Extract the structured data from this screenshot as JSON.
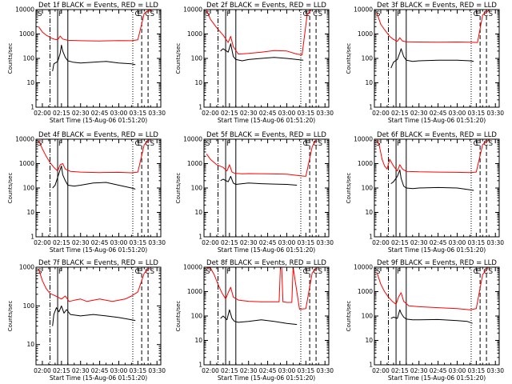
{
  "figure": {
    "colors": {
      "events": "#000000",
      "lld": "#ff0000",
      "axes": "#000000",
      "background": "#ffffff"
    }
  },
  "chart_data": [
    {
      "type": "line",
      "title": "Det 1f BLACK = Events, RED = LLD",
      "xlabel": "Start Time (15-Aug-06 01:51:20)",
      "ylabel": "Counts/sec",
      "x_ticks": [
        "02:00",
        "02:15",
        "02:30",
        "02:45",
        "03:00",
        "03:15",
        "03:30"
      ],
      "y_ticks": [
        "1",
        "10",
        "100",
        "1000",
        "10000"
      ],
      "yscale": "log",
      "ylim": [
        1,
        10000
      ],
      "markers": [
        "S",
        "F",
        "C",
        "E",
        "C",
        "S"
      ],
      "series": [
        {
          "color": "#ff0000",
          "x": [
            "01:57",
            "02:00",
            "02:03",
            "02:07",
            "02:10",
            "02:12",
            "02:14",
            "02:16",
            "02:20",
            "02:30",
            "02:45",
            "03:00",
            "03:10",
            "03:15",
            "03:20",
            "03:24",
            "03:26"
          ],
          "y": [
            2000,
            1200,
            900,
            680,
            600,
            580,
            820,
            620,
            550,
            530,
            520,
            540,
            530,
            580,
            7000,
            9500,
            9000
          ]
        },
        {
          "color": "#000000",
          "x": [
            "02:08",
            "02:09",
            "02:12",
            "02:14",
            "02:15",
            "02:16",
            "02:18",
            "02:20",
            "02:24",
            "02:30",
            "02:40",
            "02:50",
            "03:00",
            "03:10",
            "03:13"
          ],
          "y": [
            30,
            60,
            75,
            160,
            350,
            200,
            110,
            80,
            70,
            65,
            70,
            75,
            65,
            60,
            55
          ]
        }
      ]
    },
    {
      "type": "line",
      "title": "Det 2f BLACK = Events, RED = LLD",
      "xlabel": "Start Time (15-Aug-06 01:51:20)",
      "ylabel": "Counts/sec",
      "x_ticks": [
        "02:00",
        "02:15",
        "02:30",
        "02:45",
        "03:00",
        "03:15",
        "03:30"
      ],
      "y_ticks": [
        "1",
        "10",
        "100",
        "1000",
        "10000"
      ],
      "yscale": "log",
      "ylim": [
        1,
        10000
      ],
      "markers": [
        "S",
        "F",
        "C",
        "E",
        "C",
        "S"
      ],
      "series": [
        {
          "color": "#ff0000",
          "x": [
            "01:57",
            "02:00",
            "02:05",
            "02:10",
            "02:14",
            "02:16",
            "02:18",
            "02:22",
            "02:30",
            "02:40",
            "02:50",
            "03:00",
            "03:08",
            "03:12",
            "03:16",
            "03:19"
          ],
          "y": [
            9500,
            4000,
            1800,
            900,
            450,
            800,
            300,
            150,
            160,
            180,
            210,
            200,
            150,
            140,
            6000,
            9500
          ]
        },
        {
          "color": "#000000",
          "x": [
            "02:08",
            "02:10",
            "02:14",
            "02:16",
            "02:18",
            "02:20",
            "02:25",
            "02:30",
            "02:40",
            "02:50",
            "03:00",
            "03:08",
            "03:13"
          ],
          "y": [
            200,
            250,
            180,
            400,
            120,
            90,
            80,
            90,
            100,
            110,
            100,
            90,
            85
          ]
        }
      ]
    },
    {
      "type": "line",
      "title": "Det 3f BLACK = Events, RED = LLD",
      "xlabel": "Start Time (15-Aug-06 01:51:20)",
      "ylabel": "Counts/sec",
      "x_ticks": [
        "02:00",
        "02:15",
        "02:30",
        "02:45",
        "03:00",
        "03:15",
        "03:30"
      ],
      "y_ticks": [
        "1",
        "10",
        "100",
        "1000",
        "10000"
      ],
      "yscale": "log",
      "ylim": [
        1,
        10000
      ],
      "markers": [
        "S",
        "F",
        "C",
        "E",
        "C",
        "S"
      ],
      "series": [
        {
          "color": "#ff0000",
          "x": [
            "01:57",
            "02:00",
            "02:03",
            "02:07",
            "02:10",
            "02:13",
            "02:15",
            "02:17",
            "02:20",
            "02:30",
            "02:45",
            "03:00",
            "03:10",
            "03:16",
            "03:20",
            "03:25"
          ],
          "y": [
            7000,
            2500,
            1500,
            800,
            600,
            500,
            700,
            520,
            480,
            470,
            460,
            470,
            460,
            450,
            6000,
            9500
          ]
        },
        {
          "color": "#000000",
          "x": [
            "02:08",
            "02:10",
            "02:13",
            "02:15",
            "02:16",
            "02:18",
            "02:20",
            "02:25",
            "02:30",
            "02:45",
            "03:00",
            "03:10",
            "03:13"
          ],
          "y": [
            40,
            70,
            90,
            170,
            250,
            120,
            85,
            75,
            80,
            85,
            85,
            80,
            75
          ]
        }
      ]
    },
    {
      "type": "line",
      "title": "Det 4f BLACK = Events, RED = LLD",
      "xlabel": "Start Time (15-Aug-06 01:51:20)",
      "ylabel": "Counts/sec",
      "x_ticks": [
        "02:00",
        "02:15",
        "02:30",
        "02:45",
        "03:00",
        "03:15",
        "03:30"
      ],
      "y_ticks": [
        "1",
        "10",
        "100",
        "1000",
        "10000"
      ],
      "yscale": "log",
      "ylim": [
        1,
        10000
      ],
      "markers": [
        "S",
        "F",
        "C",
        "E",
        "C",
        "S"
      ],
      "series": [
        {
          "color": "#ff0000",
          "x": [
            "01:57",
            "02:00",
            "02:03",
            "02:06",
            "02:09",
            "02:12",
            "02:14",
            "02:16",
            "02:18",
            "02:22",
            "02:30",
            "02:45",
            "03:00",
            "03:10",
            "03:15",
            "03:20",
            "03:24"
          ],
          "y": [
            9000,
            4000,
            2000,
            1100,
            700,
            500,
            900,
            1000,
            600,
            480,
            450,
            430,
            440,
            420,
            450,
            6000,
            9500
          ]
        },
        {
          "color": "#000000",
          "x": [
            "02:08",
            "02:10",
            "02:13",
            "02:15",
            "02:16",
            "02:18",
            "02:20",
            "02:25",
            "02:30",
            "02:40",
            "02:50",
            "03:00",
            "03:10",
            "03:13"
          ],
          "y": [
            100,
            130,
            400,
            800,
            350,
            200,
            130,
            120,
            130,
            160,
            170,
            130,
            100,
            90
          ]
        }
      ]
    },
    {
      "type": "line",
      "title": "Det 5f BLACK = Events, RED = LLD",
      "xlabel": "Start Time (15-Aug-06 01:51:20)",
      "ylabel": "Counts/sec",
      "x_ticks": [
        "02:00",
        "02:15",
        "02:30",
        "02:45",
        "03:00",
        "03:15",
        "03:30"
      ],
      "y_ticks": [
        "1",
        "10",
        "100",
        "1000",
        "10000"
      ],
      "yscale": "log",
      "ylim": [
        1,
        10000
      ],
      "markers": [
        "S",
        "F",
        "C",
        "E",
        "C",
        "S"
      ],
      "series": [
        {
          "color": "#ff0000",
          "x": [
            "01:57",
            "02:00",
            "02:05",
            "02:10",
            "02:13",
            "02:15",
            "02:17",
            "02:19",
            "02:25",
            "02:30",
            "02:45",
            "03:00",
            "03:10",
            "03:15",
            "03:20",
            "03:23"
          ],
          "y": [
            2500,
            1500,
            900,
            700,
            500,
            900,
            450,
            400,
            380,
            390,
            380,
            370,
            320,
            300,
            5000,
            9500
          ]
        },
        {
          "color": "#000000",
          "x": [
            "02:08",
            "02:10",
            "02:14",
            "02:16",
            "02:18",
            "02:20",
            "02:25",
            "02:30",
            "02:40",
            "02:50",
            "03:00",
            "03:08"
          ],
          "y": [
            200,
            230,
            180,
            300,
            160,
            140,
            150,
            160,
            150,
            145,
            140,
            130
          ]
        }
      ]
    },
    {
      "type": "line",
      "title": "Det 6f BLACK = Events, RED = LLD",
      "xlabel": "Start Time (15-Aug-06 01:51:20)",
      "ylabel": "Counts/sec",
      "x_ticks": [
        "02:00",
        "02:15",
        "02:30",
        "02:45",
        "03:00",
        "03:15",
        "03:30"
      ],
      "y_ticks": [
        "1",
        "10",
        "100",
        "1000",
        "10000"
      ],
      "yscale": "log",
      "ylim": [
        1,
        10000
      ],
      "markers": [
        "S",
        "F",
        "C",
        "E",
        "C",
        "S"
      ],
      "series": [
        {
          "color": "#ff0000",
          "x": [
            "01:57",
            "01:59",
            "02:01",
            "02:03",
            "02:05",
            "02:07",
            "02:10",
            "02:13",
            "02:15",
            "02:17",
            "02:20",
            "02:30",
            "02:45",
            "03:00",
            "03:10",
            "03:15",
            "03:20",
            "03:25"
          ],
          "y": [
            9500,
            5000,
            1500,
            800,
            600,
            1500,
            800,
            500,
            900,
            600,
            480,
            460,
            450,
            440,
            430,
            450,
            6000,
            9500
          ]
        },
        {
          "color": "#000000",
          "x": [
            "02:08",
            "02:10",
            "02:13",
            "02:15",
            "02:16",
            "02:18",
            "02:20",
            "02:25",
            "02:30",
            "02:45",
            "03:00",
            "03:10",
            "03:13"
          ],
          "y": [
            150,
            180,
            300,
            550,
            250,
            120,
            100,
            95,
            100,
            105,
            100,
            85,
            80
          ]
        }
      ]
    },
    {
      "type": "line",
      "title": "Det 7f BLACK = Events, RED = LLD",
      "xlabel": "Start Time (15-Aug-06 01:51:20)",
      "ylabel": "Counts/sec",
      "x_ticks": [
        "02:00",
        "02:15",
        "02:30",
        "02:45",
        "03:00",
        "03:15",
        "03:30"
      ],
      "y_ticks": [
        "10",
        "100",
        "1000"
      ],
      "yscale": "log",
      "ylim": [
        3,
        1000
      ],
      "markers": [
        "S",
        "F",
        "C",
        "E",
        "C",
        "S"
      ],
      "series": [
        {
          "color": "#ff0000",
          "x": [
            "01:57",
            "02:00",
            "02:03",
            "02:06",
            "02:09",
            "02:12",
            "02:15",
            "02:18",
            "02:21",
            "02:25",
            "02:30",
            "02:35",
            "02:45",
            "02:55",
            "03:05",
            "03:10",
            "03:15",
            "03:20",
            "03:24"
          ],
          "y": [
            900,
            450,
            280,
            210,
            190,
            170,
            150,
            180,
            130,
            140,
            150,
            130,
            150,
            130,
            150,
            180,
            230,
            700,
            950
          ]
        },
        {
          "color": "#000000",
          "x": [
            "02:08",
            "02:09",
            "02:11",
            "02:13",
            "02:15",
            "02:17",
            "02:19",
            "02:22",
            "02:30",
            "02:40",
            "02:50",
            "03:00",
            "03:08",
            "03:13"
          ],
          "y": [
            30,
            60,
            90,
            70,
            100,
            65,
            80,
            60,
            55,
            60,
            55,
            50,
            45,
            42
          ]
        }
      ]
    },
    {
      "type": "line",
      "title": "Det 8f BLACK = Events, RED = LLD",
      "xlabel": "Start Time (15-Aug-06 01:51:20)",
      "ylabel": "Counts/sec",
      "x_ticks": [
        "02:00",
        "02:15",
        "02:30",
        "02:45",
        "03:00",
        "03:15",
        "03:30"
      ],
      "y_ticks": [
        "1",
        "10",
        "100",
        "1000",
        "10000"
      ],
      "yscale": "log",
      "ylim": [
        1,
        10000
      ],
      "markers": [
        "S",
        "F",
        "C",
        "E",
        "C",
        "S"
      ],
      "series": [
        {
          "color": "#ff0000",
          "x": [
            "01:57",
            "02:00",
            "02:03",
            "02:06",
            "02:09",
            "02:12",
            "02:14",
            "02:16",
            "02:18",
            "02:22",
            "02:30",
            "02:40",
            "02:50",
            "02:54",
            "02:55",
            "02:56",
            "02:57",
            "03:00",
            "03:04",
            "03:05",
            "03:10",
            "03:15",
            "03:20",
            "03:24"
          ],
          "y": [
            9500,
            9500,
            5000,
            2000,
            900,
            500,
            900,
            1500,
            600,
            450,
            400,
            380,
            380,
            380,
            10000,
            10000,
            380,
            360,
            360,
            10000,
            190,
            200,
            6000,
            9500
          ]
        },
        {
          "color": "#000000",
          "x": [
            "02:08",
            "02:10",
            "02:13",
            "02:15",
            "02:17",
            "02:19",
            "02:22",
            "02:30",
            "02:40",
            "02:50",
            "03:00",
            "03:08"
          ],
          "y": [
            80,
            100,
            70,
            180,
            80,
            60,
            55,
            60,
            70,
            60,
            50,
            45
          ]
        }
      ]
    },
    {
      "type": "line",
      "title": "Det 9f BLACK = Events, RED = LLD",
      "xlabel": "Start Time (15-Aug-06 01:51:20)",
      "ylabel": "Counts/sec",
      "x_ticks": [
        "02:00",
        "02:15",
        "02:30",
        "02:45",
        "03:00",
        "03:15",
        "03:30"
      ],
      "y_ticks": [
        "1",
        "10",
        "100",
        "1000",
        "10000"
      ],
      "yscale": "log",
      "ylim": [
        1,
        10000
      ],
      "markers": [
        "S",
        "F",
        "C",
        "E",
        "C",
        "S"
      ],
      "series": [
        {
          "color": "#ff0000",
          "x": [
            "01:57",
            "02:00",
            "02:03",
            "02:06",
            "02:09",
            "02:12",
            "02:14",
            "02:16",
            "02:18",
            "02:22",
            "02:30",
            "02:45",
            "03:00",
            "03:10",
            "03:15",
            "03:20",
            "03:24"
          ],
          "y": [
            6000,
            2000,
            1000,
            600,
            400,
            300,
            600,
            900,
            400,
            260,
            240,
            220,
            200,
            180,
            200,
            5000,
            9500
          ]
        },
        {
          "color": "#000000",
          "x": [
            "02:08",
            "02:10",
            "02:13",
            "02:15",
            "02:16",
            "02:18",
            "02:20",
            "02:25",
            "02:30",
            "02:45",
            "03:00",
            "03:08",
            "03:12"
          ],
          "y": [
            80,
            90,
            80,
            180,
            130,
            90,
            75,
            70,
            70,
            72,
            65,
            60,
            50
          ]
        }
      ]
    }
  ]
}
